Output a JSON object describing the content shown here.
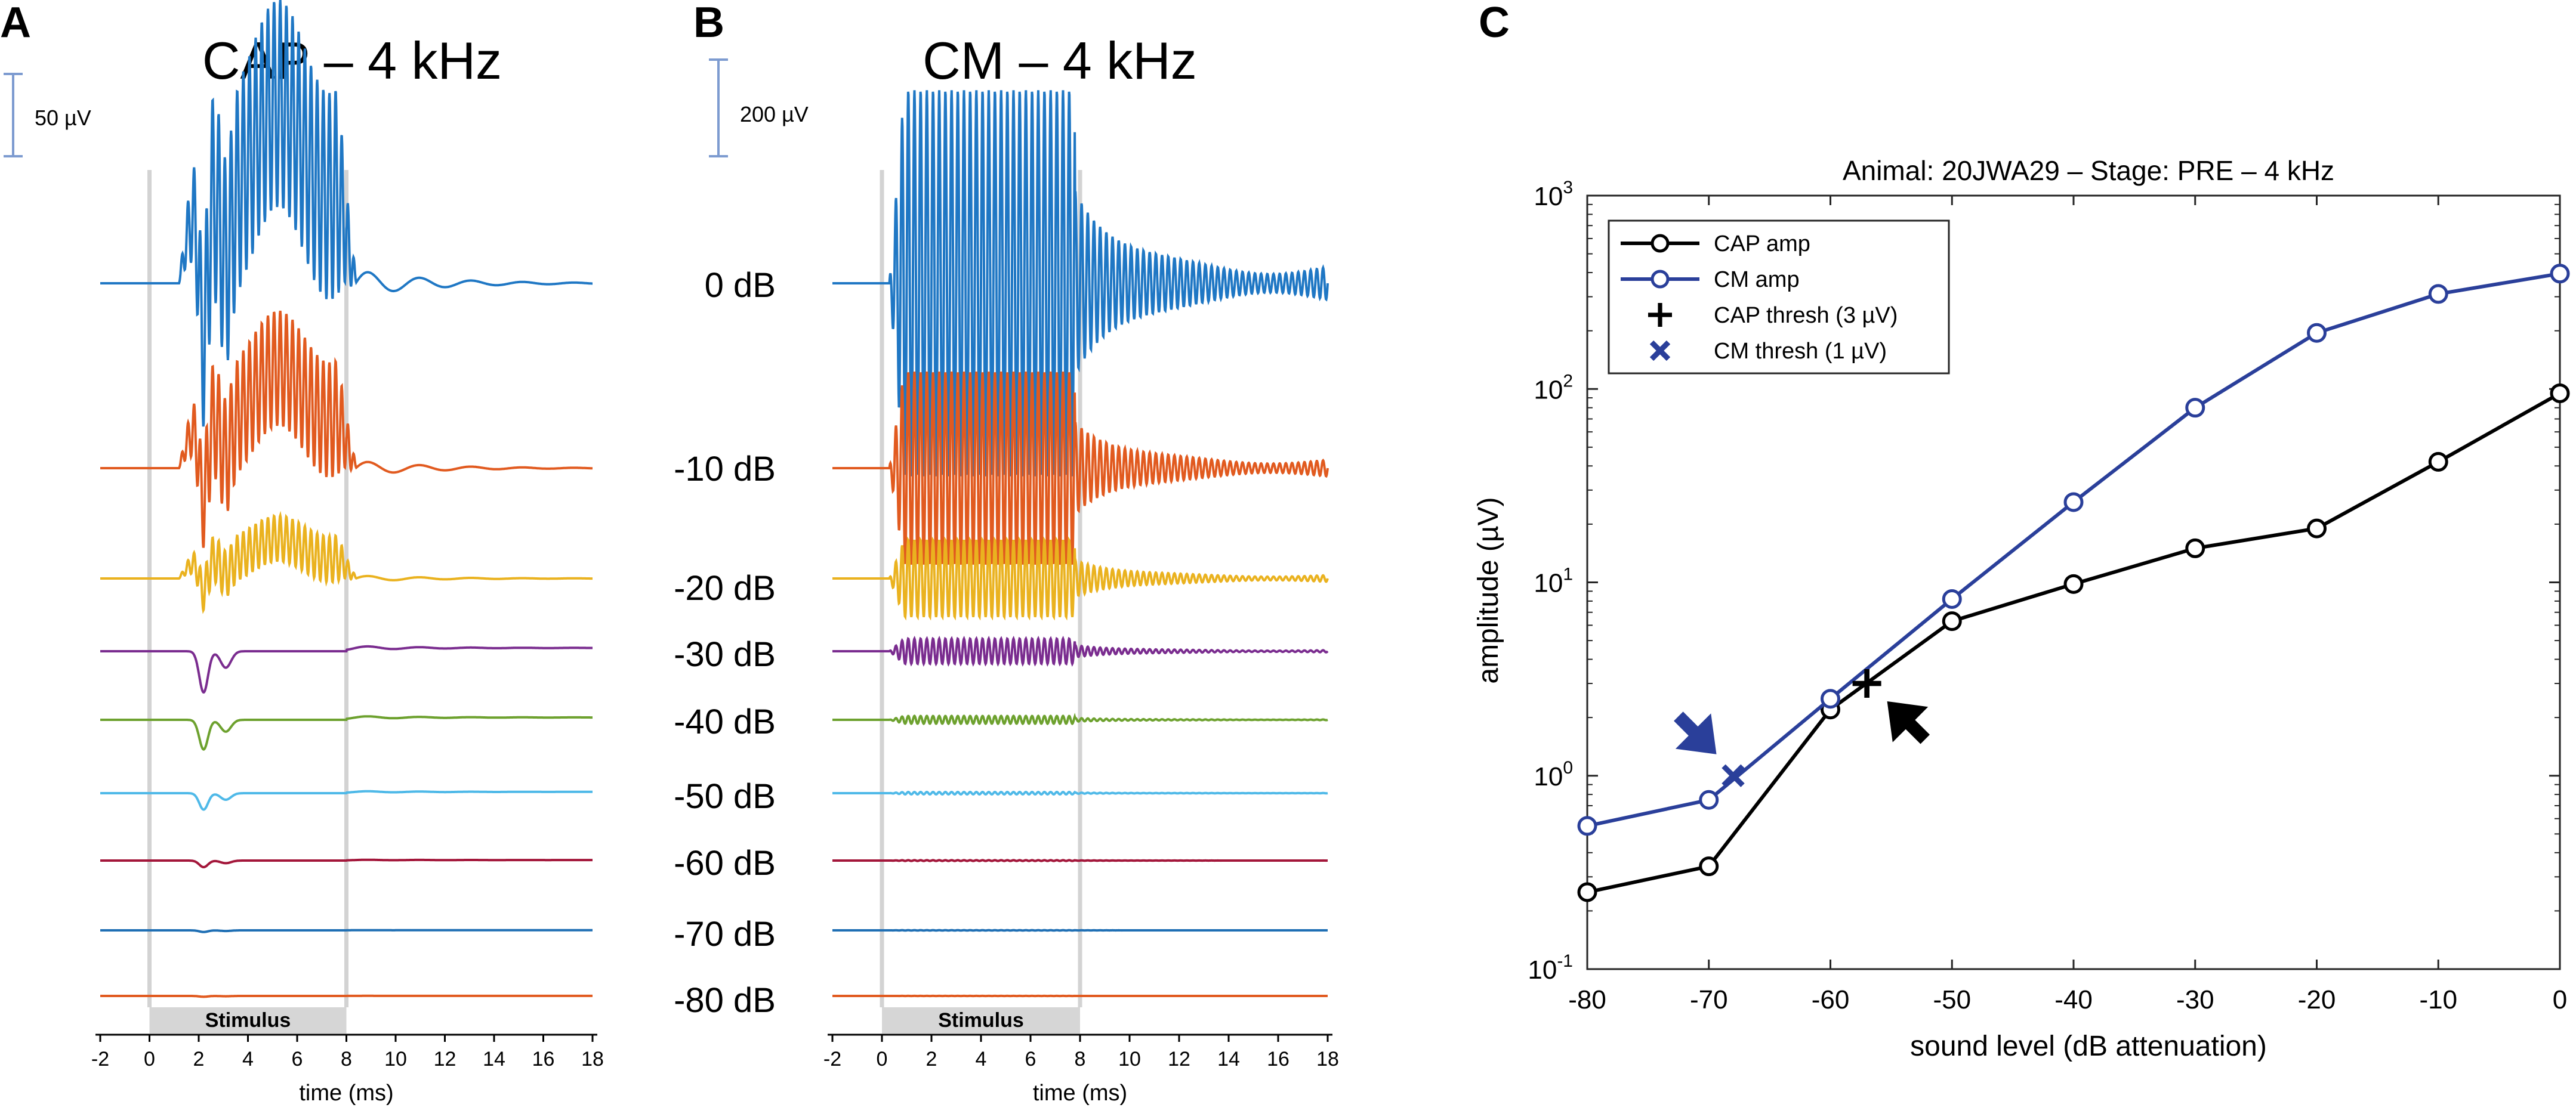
{
  "panels": {
    "a_letter": "A",
    "b_letter": "B",
    "c_letter": "C"
  },
  "chart_data": [
    {
      "type": "line",
      "title": "CAP – 4 kHz",
      "signal": "CAP",
      "scale_bar": "50 µV",
      "scale_bar_uV": 50,
      "xlabel": "time (ms)",
      "xlim": [
        -2,
        18
      ],
      "xticks": [
        -2,
        0,
        2,
        4,
        6,
        8,
        10,
        12,
        14,
        16,
        18
      ],
      "stimulus_label": "Stimulus",
      "stimulus_ms": [
        0,
        8
      ],
      "series": [
        {
          "name": "0 dB",
          "color": "#1f77c4",
          "peak_uV": 180
        },
        {
          "name": "-10 dB",
          "color": "#e15a1f",
          "peak_uV": 100
        },
        {
          "name": "-20 dB",
          "color": "#eab21f",
          "peak_uV": 40
        },
        {
          "name": "-30 dB",
          "color": "#7a2c8f",
          "peak_uV": 25
        },
        {
          "name": "-40 dB",
          "color": "#6da12e",
          "peak_uV": 18
        },
        {
          "name": "-50 dB",
          "color": "#4fb9e8",
          "peak_uV": 10
        },
        {
          "name": "-60 dB",
          "color": "#a3163a",
          "peak_uV": 4
        },
        {
          "name": "-70 dB",
          "color": "#1f6fb4",
          "peak_uV": 1
        },
        {
          "name": "-80 dB",
          "color": "#e15a1f",
          "peak_uV": 0.5
        }
      ]
    },
    {
      "type": "line",
      "title": "CM – 4 kHz",
      "signal": "CM",
      "scale_bar": "200 µV",
      "scale_bar_uV": 200,
      "xlabel": "time (ms)",
      "xlim": [
        -2,
        18
      ],
      "xticks": [
        -2,
        0,
        2,
        4,
        6,
        8,
        10,
        12,
        14,
        16,
        18
      ],
      "stimulus_label": "Stimulus",
      "stimulus_ms": [
        0,
        8
      ],
      "series": [
        {
          "name": "0 dB",
          "color": "#1f77c4",
          "peak_uV": 400
        },
        {
          "name": "-10 dB",
          "color": "#e15a1f",
          "peak_uV": 200
        },
        {
          "name": "-20 dB",
          "color": "#eab21f",
          "peak_uV": 80
        },
        {
          "name": "-30 dB",
          "color": "#7a2c8f",
          "peak_uV": 26
        },
        {
          "name": "-40 dB",
          "color": "#6da12e",
          "peak_uV": 8
        },
        {
          "name": "-50 dB",
          "color": "#4fb9e8",
          "peak_uV": 2.5
        },
        {
          "name": "-60 dB",
          "color": "#a3163a",
          "peak_uV": 0.8
        },
        {
          "name": "-70 dB",
          "color": "#1f6fb4",
          "peak_uV": 0.3
        },
        {
          "name": "-80 dB",
          "color": "#e15a1f",
          "peak_uV": 0.1
        }
      ]
    },
    {
      "type": "line",
      "title": "Animal: 20JWA29 – Stage: PRE – 4 kHz",
      "xlabel": "sound level (dB attenuation)",
      "ylabel": "amplitude (µV)",
      "xlim": [
        -80,
        0
      ],
      "ylim": [
        0.1,
        1000
      ],
      "yscale": "log",
      "xticks": [
        -80,
        -70,
        -60,
        -50,
        -40,
        -30,
        -20,
        -10,
        0
      ],
      "xtick_labels": [
        "-80",
        "-70",
        "-60",
        "-50",
        "-40",
        "-30",
        "-20",
        "-10",
        "0"
      ],
      "yticks": [
        0.1,
        1,
        10,
        100,
        1000
      ],
      "ytick_labels": [
        {
          "base": "10",
          "exp": "-1"
        },
        {
          "base": "10",
          "exp": "0"
        },
        {
          "base": "10",
          "exp": "1"
        },
        {
          "base": "10",
          "exp": "2"
        },
        {
          "base": "10",
          "exp": "3"
        }
      ],
      "x": [
        -80,
        -70,
        -60,
        -50,
        -40,
        -30,
        -20,
        -10,
        0
      ],
      "series": [
        {
          "name": "CAP amp",
          "color": "#000000",
          "values": [
            0.25,
            0.34,
            2.2,
            6.3,
            9.8,
            15,
            19,
            42,
            95
          ]
        },
        {
          "name": "CM amp",
          "color": "#2a3f9a",
          "values": [
            0.55,
            0.75,
            2.5,
            8.2,
            26,
            80,
            195,
            310,
            395
          ]
        }
      ],
      "thresholds": [
        {
          "name": "CAP thresh (3 µV)",
          "x": -57,
          "y": 3.0,
          "marker": "plus",
          "color": "#000000",
          "arrow_from": "lower-right"
        },
        {
          "name": "CM thresh (1 µV)",
          "x": -68,
          "y": 1.0,
          "marker": "x",
          "color": "#2a3f9a",
          "arrow_from": "upper-left"
        }
      ],
      "legend": {
        "placement": "top-left",
        "entries": [
          "CAP amp",
          "CM amp",
          "CAP thresh (3 µV)",
          "CM thresh (1 µV)"
        ]
      }
    }
  ]
}
